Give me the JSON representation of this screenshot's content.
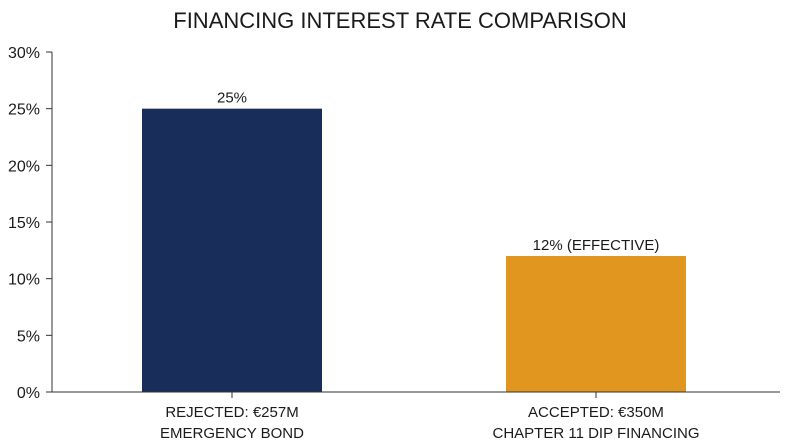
{
  "chart_data": {
    "type": "bar",
    "title": "FINANCING INTEREST RATE COMPARISON",
    "xlabel": "",
    "ylabel": "",
    "ylim": [
      0,
      30
    ],
    "y_ticks": [
      "0%",
      "5%",
      "10%",
      "15%",
      "20%",
      "25%",
      "30%"
    ],
    "y_tick_values": [
      0,
      5,
      10,
      15,
      20,
      25,
      30
    ],
    "grid": false,
    "categories": [
      [
        "REJECTED: €257M",
        "EMERGENCY BOND"
      ],
      [
        "ACCEPTED: €350M",
        "CHAPTER 11 DIP FINANCING"
      ]
    ],
    "values": [
      25,
      12
    ],
    "data_labels": [
      "25%",
      "12% (EFFECTIVE)"
    ],
    "colors": [
      "#182d59",
      "#e0961f"
    ]
  }
}
